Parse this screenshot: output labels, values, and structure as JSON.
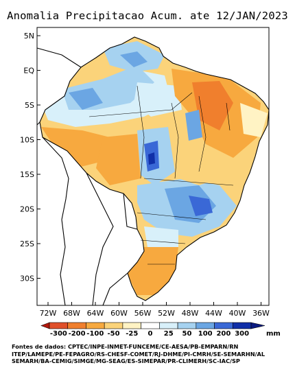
{
  "title": "Anomalia Precipitacao Acum. ate 12/JAN/2023",
  "map": {
    "lat_labels": [
      "5N",
      "EQ",
      "5S",
      "10S",
      "15S",
      "20S",
      "25S",
      "30S"
    ],
    "lon_labels": [
      "72W",
      "68W",
      "64W",
      "60W",
      "56W",
      "52W",
      "48W",
      "44W",
      "40W",
      "36W"
    ],
    "lat_range": [
      6,
      -34
    ],
    "lon_range": [
      -74,
      -34
    ]
  },
  "colorbar": {
    "labels": [
      "-300",
      "-200",
      "-100",
      "-50",
      "-25",
      "0",
      "25",
      "50",
      "100",
      "200",
      "300"
    ],
    "unit": "mm",
    "colors": [
      "#b2180c",
      "#e0502a",
      "#f07f2d",
      "#f7a93f",
      "#fbd37a",
      "#fff3c4",
      "#ffffff",
      "#d8f0fa",
      "#a6d2f0",
      "#6ba6e3",
      "#3a68d6",
      "#102fa8",
      "#0a1a80"
    ]
  },
  "footer": {
    "line1": "Fontes de dados: CPTEC/INPE-INMET-FUNCEME/CE-AESA/PB-EMPARN/RN",
    "line2": "ITEP/LAMEPE/PE-FEPAGRO/RS-CHESF-COMET/RJ-DHME/PI-CMRH/SE-SEMARHN/AL",
    "line3": "SEMARH/BA-CEMIG/SIMGE/MG-SEAG/ES-SIMEPAR/PR-CLIMERH/SC-IAC/SP"
  }
}
